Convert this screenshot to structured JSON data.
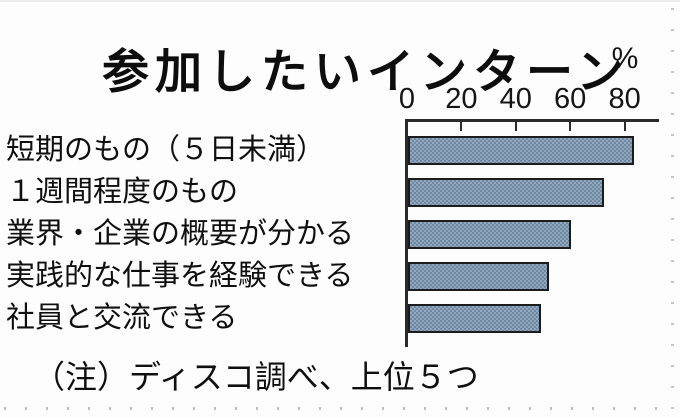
{
  "chart_data": {
    "type": "bar",
    "orientation": "horizontal",
    "title": "参加したいインターン",
    "unit_label": "%",
    "categories": [
      "短期のもの（５日未満）",
      "１週間程度のもの",
      "業界・企業の概要が分かる",
      "実践的な仕事を経験できる",
      "社員と交流できる"
    ],
    "values": [
      83,
      72,
      60,
      52,
      49
    ],
    "ticks": [
      0,
      20,
      40,
      60,
      80
    ],
    "xlim": [
      0,
      92
    ],
    "grid": false,
    "legend": false,
    "source_note": "（注）ディスコ調べ、上位５つ",
    "colors": {
      "bar_fill_light": "#93a7bb",
      "bar_fill_dark": "#6e89a4",
      "bar_border": "#1c1c1c",
      "axis": "#2a2a2a",
      "background": "#fdfdfd",
      "perforation": "#c0c0c0"
    }
  }
}
